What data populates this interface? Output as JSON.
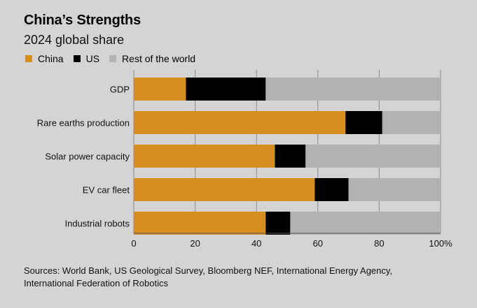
{
  "colors": {
    "china": "#d68f1e",
    "us": "#000000",
    "rest": "#b2b2b2",
    "grid": "#8a8a8a",
    "background": "#d4d4d4"
  },
  "legend": [
    {
      "label": "China",
      "color": "#d68f1e"
    },
    {
      "label": "US",
      "color": "#000000"
    },
    {
      "label": "Rest of the world",
      "color": "#b2b2b2"
    }
  ],
  "footer": {
    "sources": "Sources: World Bank, US Geological Survey, Bloomberg NEF, International Energy Agency, International Federation of Robotics"
  },
  "chart_data": {
    "type": "bar",
    "orientation": "horizontal",
    "stacked": true,
    "title": "China’s Strengths",
    "subtitle": "2024 global share",
    "categories": [
      "GDP",
      "Rare earths production",
      "Solar power capacity",
      "EV car fleet",
      "Industrial robots"
    ],
    "series": [
      {
        "name": "China",
        "values": [
          17,
          69,
          46,
          59,
          43
        ]
      },
      {
        "name": "US",
        "values": [
          26,
          12,
          10,
          11,
          8
        ]
      },
      {
        "name": "Rest of the world",
        "values": [
          57,
          19,
          44,
          30,
          49
        ]
      }
    ],
    "xlim": [
      0,
      100
    ],
    "xticks": [
      0,
      20,
      40,
      60,
      80,
      100
    ],
    "xtick_labels": [
      "0",
      "20",
      "40",
      "60",
      "80",
      "100%"
    ],
    "grid": "vertical",
    "legend_position": "top-left"
  }
}
